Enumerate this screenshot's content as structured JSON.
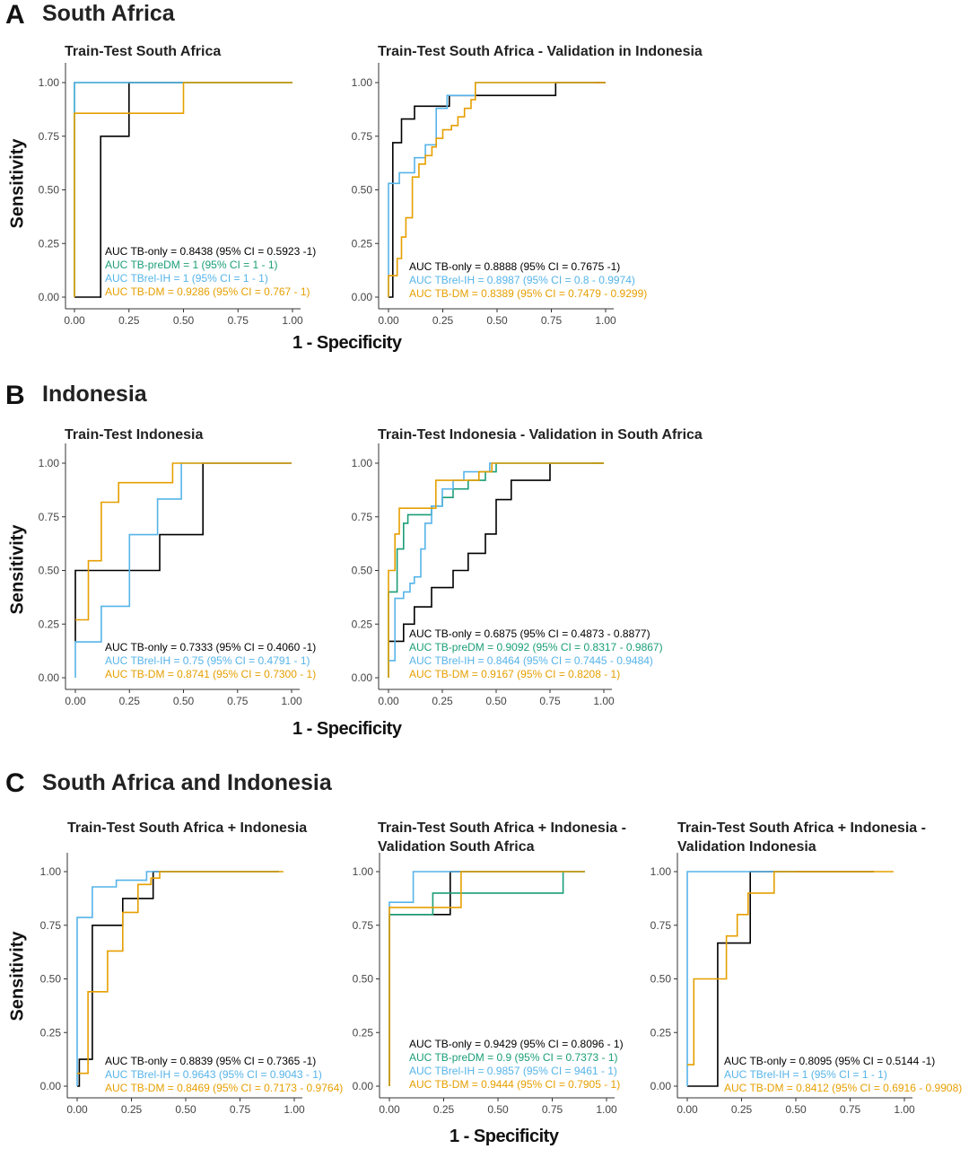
{
  "colors": {
    "TB-only": "#000000",
    "TB-preDM": "#1b9e77",
    "TBrel-IH": "#56b4e9",
    "TB-DM": "#e69f00"
  },
  "sections": [
    {
      "letter": "A",
      "title": "South Africa",
      "ylabel": "Sensitivity",
      "xlabel": "1 - Specificity"
    },
    {
      "letter": "B",
      "title": "Indonesia",
      "ylabel": "Sensitivity",
      "xlabel": "1 - Specificity"
    },
    {
      "letter": "C",
      "title": "South Africa and Indonesia",
      "ylabel": "Sensitivity",
      "xlabel": "1 - Specificity"
    }
  ],
  "panel_titles": [
    [
      "Train-Test South Africa"
    ],
    [
      "Train-Test South Africa - Validation in Indonesia"
    ],
    [
      "Train-Test Indonesia"
    ],
    [
      "Train-Test Indonesia - Validation in South Africa"
    ],
    [
      "Train-Test South Africa + Indonesia"
    ],
    [
      "Train-Test South Africa + Indonesia -",
      "Validation South Africa"
    ],
    [
      "Train-Test South Africa + Indonesia -",
      "Validation Indonesia"
    ]
  ],
  "chart_data": [
    {
      "type": "line",
      "title": "Train-Test South Africa",
      "xlabel": "1 - Specificity",
      "ylabel": "Sensitivity",
      "xlim": [
        0,
        1
      ],
      "ylim": [
        0,
        1
      ],
      "ticks": [
        "0.00",
        "0.25",
        "0.50",
        "0.75",
        "1.00"
      ],
      "series": [
        {
          "name": "TB-only",
          "x": [
            0,
            0,
            0.12,
            0.12,
            0.25,
            0.25,
            0.5,
            1.0
          ],
          "y": [
            0,
            0,
            0,
            0.75,
            0.75,
            1.0,
            1.0,
            1.0
          ]
        },
        {
          "name": "TB-preDM",
          "x": [
            0,
            0,
            1.0
          ],
          "y": [
            0,
            1.0,
            1.0
          ]
        },
        {
          "name": "TBrel-IH",
          "x": [
            0,
            0,
            1.0
          ],
          "y": [
            0,
            1.0,
            1.0
          ]
        },
        {
          "name": "TB-DM",
          "x": [
            0,
            0,
            0.5,
            0.5,
            1.0
          ],
          "y": [
            0,
            0.857,
            0.857,
            1.0,
            1.0
          ]
        }
      ],
      "legend": [
        {
          "series": "TB-only",
          "text": "AUC TB-only = 0.8438 (95% CI = 0.5923 -1)"
        },
        {
          "series": "TB-preDM",
          "text": "AUC TB-preDM = 1 (95% CI = 1 - 1)"
        },
        {
          "series": "TBrel-IH",
          "text": "AUC TBrel-IH = 1 (95% CI = 1 - 1)"
        },
        {
          "series": "TB-DM",
          "text": "AUC TB-DM = 0.9286 (95% CI = 0.767 - 1)"
        }
      ]
    },
    {
      "type": "line",
      "title": "Train-Test South Africa - Validation in Indonesia",
      "xlabel": "1 - Specificity",
      "ylabel": "Sensitivity",
      "xlim": [
        0,
        1
      ],
      "ylim": [
        0,
        1
      ],
      "ticks": [
        "0.00",
        "0.25",
        "0.50",
        "0.75",
        "1.00"
      ],
      "series": [
        {
          "name": "TB-only",
          "x": [
            0,
            0.02,
            0.02,
            0.06,
            0.06,
            0.12,
            0.12,
            0.17,
            0.17,
            0.28,
            0.28,
            0.77,
            0.77,
            1.0
          ],
          "y": [
            0,
            0,
            0.72,
            0.72,
            0.83,
            0.83,
            0.89,
            0.89,
            0.89,
            0.89,
            0.94,
            0.94,
            1.0,
            1.0
          ]
        },
        {
          "name": "TBrel-IH",
          "x": [
            0,
            0,
            0.05,
            0.05,
            0.12,
            0.12,
            0.17,
            0.17,
            0.22,
            0.22,
            0.27,
            0.27,
            0.4,
            0.4,
            0.95
          ],
          "y": [
            0,
            0.53,
            0.53,
            0.58,
            0.58,
            0.65,
            0.65,
            0.71,
            0.71,
            0.88,
            0.88,
            0.94,
            0.94,
            1.0,
            1.0
          ]
        },
        {
          "name": "TB-DM",
          "x": [
            0,
            0,
            0.04,
            0.04,
            0.06,
            0.06,
            0.08,
            0.08,
            0.11,
            0.11,
            0.14,
            0.14,
            0.17,
            0.17,
            0.2,
            0.2,
            0.22,
            0.22,
            0.25,
            0.25,
            0.29,
            0.29,
            0.32,
            0.32,
            0.35,
            0.35,
            0.38,
            0.38,
            0.4,
            0.4,
            1.0
          ],
          "y": [
            0,
            0.1,
            0.1,
            0.18,
            0.18,
            0.28,
            0.28,
            0.37,
            0.37,
            0.56,
            0.56,
            0.62,
            0.62,
            0.66,
            0.66,
            0.7,
            0.7,
            0.74,
            0.74,
            0.78,
            0.78,
            0.8,
            0.8,
            0.84,
            0.84,
            0.88,
            0.88,
            0.92,
            0.92,
            1.0,
            1.0
          ]
        }
      ],
      "legend": [
        {
          "series": "TB-only",
          "text": "AUC TB-only = 0.8888 (95% CI = 0.7675 -1)"
        },
        {
          "series": "TBrel-IH",
          "text": "AUC TBrel-IH = 0.8987 (95% CI = 0.8 - 0.9974)"
        },
        {
          "series": "TB-DM",
          "text": "AUC TB-DM = 0.8389 (95% CI = 0.7479 - 0.9299)"
        }
      ]
    },
    {
      "type": "line",
      "title": "Train-Test Indonesia",
      "xlabel": "1 - Specificity",
      "ylabel": "Sensitivity",
      "xlim": [
        0,
        1
      ],
      "ylim": [
        0,
        1
      ],
      "ticks": [
        "0.00",
        "0.25",
        "0.50",
        "0.75",
        "1.00"
      ],
      "series": [
        {
          "name": "TB-only",
          "x": [
            0,
            0,
            0.39,
            0.39,
            0.59,
            0.59,
            1.0
          ],
          "y": [
            0.17,
            0.5,
            0.5,
            0.667,
            0.667,
            1.0,
            1.0
          ]
        },
        {
          "name": "TBrel-IH",
          "x": [
            0,
            0,
            0.12,
            0.12,
            0.25,
            0.25,
            0.38,
            0.38,
            0.49,
            0.49,
            0.75,
            1.0
          ],
          "y": [
            0,
            0.167,
            0.167,
            0.333,
            0.333,
            0.667,
            0.667,
            0.833,
            0.833,
            1.0,
            1.0,
            1.0
          ]
        },
        {
          "name": "TB-DM",
          "x": [
            0,
            0,
            0.06,
            0.06,
            0.12,
            0.12,
            0.2,
            0.2,
            0.45,
            0.45,
            1.0
          ],
          "y": [
            0.27,
            0.27,
            0.27,
            0.545,
            0.545,
            0.818,
            0.818,
            0.909,
            0.909,
            1.0,
            1.0
          ]
        }
      ],
      "legend": [
        {
          "series": "TB-only",
          "text": "AUC TB-only = 0.7333 (95% CI = 0.4060 -1)"
        },
        {
          "series": "TBrel-IH",
          "text": "AUC TBrel-IH = 0.75 (95% CI = 0.4791 - 1)"
        },
        {
          "series": "TB-DM",
          "text": "AUC TB-DM = 0.8741 (95% CI = 0.7300 - 1)"
        }
      ]
    },
    {
      "type": "line",
      "title": "Train-Test Indonesia - Validation in South Africa",
      "xlabel": "1 - Specificity",
      "ylabel": "Sensitivity",
      "xlim": [
        0,
        1
      ],
      "ylim": [
        0,
        1
      ],
      "ticks": [
        "0.00",
        "0.25",
        "0.50",
        "0.75",
        "1.00"
      ],
      "series": [
        {
          "name": "TB-only",
          "x": [
            0,
            0,
            0.07,
            0.07,
            0.12,
            0.12,
            0.2,
            0.2,
            0.3,
            0.3,
            0.37,
            0.37,
            0.45,
            0.45,
            0.5,
            0.5,
            0.57,
            0.57,
            0.62,
            0.62,
            0.72,
            0.72,
            0.75,
            0.75,
            1.0
          ],
          "y": [
            0.17,
            0.17,
            0.17,
            0.25,
            0.25,
            0.33,
            0.33,
            0.42,
            0.42,
            0.5,
            0.5,
            0.58,
            0.58,
            0.67,
            0.67,
            0.83,
            0.83,
            0.92,
            0.92,
            0.92,
            0.92,
            0.92,
            0.92,
            1.0,
            1.0
          ]
        },
        {
          "name": "TB-preDM",
          "x": [
            0,
            0,
            0.04,
            0.04,
            0.07,
            0.07,
            0.09,
            0.09,
            0.2,
            0.2,
            0.25,
            0.25,
            0.3,
            0.3,
            0.37,
            0.37,
            0.45,
            0.45,
            0.5,
            0.5,
            1.0
          ],
          "y": [
            0,
            0.4,
            0.4,
            0.6,
            0.6,
            0.72,
            0.72,
            0.76,
            0.76,
            0.8,
            0.8,
            0.84,
            0.84,
            0.88,
            0.88,
            0.92,
            0.92,
            0.96,
            0.96,
            1.0,
            1.0
          ]
        },
        {
          "name": "TBrel-IH",
          "x": [
            0,
            0,
            0.03,
            0.03,
            0.07,
            0.07,
            0.1,
            0.1,
            0.12,
            0.12,
            0.15,
            0.15,
            0.17,
            0.17,
            0.2,
            0.2,
            0.25,
            0.25,
            0.3,
            0.3,
            0.35,
            0.35,
            0.45,
            0.45,
            0.47,
            0.47,
            0.95
          ],
          "y": [
            0,
            0.08,
            0.08,
            0.37,
            0.37,
            0.4,
            0.4,
            0.44,
            0.44,
            0.47,
            0.47,
            0.6,
            0.6,
            0.72,
            0.72,
            0.8,
            0.8,
            0.88,
            0.88,
            0.92,
            0.92,
            0.96,
            0.96,
            0.96,
            0.96,
            1.0,
            1.0
          ]
        },
        {
          "name": "TB-DM",
          "x": [
            0,
            0,
            0.03,
            0.03,
            0.05,
            0.05,
            0.08,
            0.08,
            0.22,
            0.22,
            0.32,
            0.32,
            0.42,
            0.42,
            0.48,
            0.48,
            1.0
          ],
          "y": [
            0,
            0.5,
            0.5,
            0.67,
            0.67,
            0.79,
            0.79,
            0.79,
            0.79,
            0.92,
            0.92,
            0.92,
            0.92,
            0.96,
            0.96,
            1.0,
            1.0
          ]
        }
      ],
      "legend": [
        {
          "series": "TB-only",
          "text": "AUC TB-only = 0.6875 (95% CI = 0.4873 - 0.8877)"
        },
        {
          "series": "TB-preDM",
          "text": "AUC TB-preDM = 0.9092 (95% CI = 0.8317 - 0.9867)"
        },
        {
          "series": "TBrel-IH",
          "text": "AUC TBrel-IH = 0.8464 (95% CI = 0.7445 - 0.9484)"
        },
        {
          "series": "TB-DM",
          "text": "AUC TB-DM = 0.9167 (95% CI = 0.8208 - 1)"
        }
      ]
    },
    {
      "type": "line",
      "title": "Train-Test South Africa + Indonesia",
      "xlabel": "1 - Specificity",
      "ylabel": "Sensitivity",
      "xlim": [
        0,
        1
      ],
      "ylim": [
        0,
        1
      ],
      "ticks": [
        "0.00",
        "0.25",
        "0.50",
        "0.75",
        "1.00"
      ],
      "series": [
        {
          "name": "TB-only",
          "x": [
            0,
            0.01,
            0.01,
            0.07,
            0.07,
            0.21,
            0.21,
            0.35,
            0.35,
            0.93,
            0.93
          ],
          "y": [
            0,
            0,
            0.125,
            0.125,
            0.75,
            0.75,
            0.875,
            0.875,
            1.0,
            1.0,
            1.0
          ]
        },
        {
          "name": "TBrel-IH",
          "x": [
            0,
            0,
            0.07,
            0.07,
            0.18,
            0.18,
            0.32,
            0.32,
            0.93
          ],
          "y": [
            0,
            0.786,
            0.786,
            0.929,
            0.929,
            0.96,
            0.96,
            1.0,
            1.0
          ]
        },
        {
          "name": "TB-DM",
          "x": [
            0,
            0,
            0.05,
            0.05,
            0.14,
            0.14,
            0.21,
            0.21,
            0.28,
            0.28,
            0.34,
            0.34,
            0.38,
            0.38,
            0.95
          ],
          "y": [
            0.06,
            0.06,
            0.06,
            0.44,
            0.44,
            0.63,
            0.63,
            0.81,
            0.81,
            0.94,
            0.94,
            0.97,
            0.97,
            1.0,
            1.0
          ]
        }
      ],
      "legend": [
        {
          "series": "TB-only",
          "text": "AUC TB-only = 0.8839 (95% CI = 0.7365 -1)"
        },
        {
          "series": "TBrel-IH",
          "text": "AUC TBrel-IH = 0.9643 (95% CI = 0.9043 - 1)"
        },
        {
          "series": "TB-DM",
          "text": "AUC TB-DM = 0.8469 (95% CI = 0.7173 - 0.9764)"
        }
      ]
    },
    {
      "type": "line",
      "title": "Train-Test South Africa + Indonesia - Validation South Africa",
      "xlabel": "1 - Specificity",
      "ylabel": "Sensitivity",
      "xlim": [
        0,
        1
      ],
      "ylim": [
        0,
        1
      ],
      "ticks": [
        "0.00",
        "0.25",
        "0.50",
        "0.75",
        "1.00"
      ],
      "series": [
        {
          "name": "TB-only",
          "x": [
            0,
            0,
            0.22,
            0.22,
            0.28,
            0.28,
            0.9
          ],
          "y": [
            0,
            0.8,
            0.8,
            0.8,
            0.8,
            1.0,
            1.0
          ]
        },
        {
          "name": "TB-preDM",
          "x": [
            0,
            0,
            0.2,
            0.2,
            0.8,
            0.8,
            0.9
          ],
          "y": [
            0,
            0.8,
            0.8,
            0.9,
            0.9,
            1.0,
            1.0
          ]
        },
        {
          "name": "TBrel-IH",
          "x": [
            0,
            0,
            0.11,
            0.11,
            0.9
          ],
          "y": [
            0,
            0.857,
            0.857,
            1.0,
            1.0
          ]
        },
        {
          "name": "TB-DM",
          "x": [
            0,
            0,
            0.33,
            0.33,
            0.9
          ],
          "y": [
            0,
            0.833,
            0.833,
            1.0,
            1.0
          ]
        }
      ],
      "legend": [
        {
          "series": "TB-only",
          "text": "AUC TB-only = 0.9429 (95% CI = 0.8096 - 1)"
        },
        {
          "series": "TB-preDM",
          "text": "AUC TB-preDM = 0.9 (95% CI = 0.7373 - 1)"
        },
        {
          "series": "TBrel-IH",
          "text": "AUC TBrel-IH = 0.9857 (95% CI = 9461 - 1)"
        },
        {
          "series": "TB-DM",
          "text": "AUC TB-DM = 0.9444 (95% CI = 0.7905 - 1)"
        }
      ]
    },
    {
      "type": "line",
      "title": "Train-Test South Africa + Indonesia - Validation Indonesia",
      "xlabel": "1 - Specificity",
      "ylabel": "Sensitivity",
      "xlim": [
        0,
        1
      ],
      "ylim": [
        0,
        1
      ],
      "ticks": [
        "0.00",
        "0.25",
        "0.50",
        "0.75",
        "1.00"
      ],
      "series": [
        {
          "name": "TB-only",
          "x": [
            0,
            0.14,
            0.14,
            0.29,
            0.29,
            0.86
          ],
          "y": [
            0,
            0,
            0.667,
            0.667,
            1.0,
            1.0
          ]
        },
        {
          "name": "TBrel-IH",
          "x": [
            0,
            0,
            0.5
          ],
          "y": [
            0,
            1.0,
            1.0
          ]
        },
        {
          "name": "TB-DM",
          "x": [
            0,
            0,
            0.03,
            0.03,
            0.18,
            0.18,
            0.23,
            0.23,
            0.28,
            0.28,
            0.36,
            0.36,
            0.4,
            0.4,
            0.95
          ],
          "y": [
            0.1,
            0.1,
            0.1,
            0.5,
            0.5,
            0.7,
            0.7,
            0.8,
            0.8,
            0.9,
            0.9,
            0.9,
            0.9,
            1.0,
            1.0
          ]
        }
      ],
      "legend": [
        {
          "series": "TB-only",
          "text": "AUC TB-only = 0.8095 (95% CI = 0.5144 -1)"
        },
        {
          "series": "TBrel-IH",
          "text": "AUC TBrel-IH = 1 (95% CI = 1 - 1)"
        },
        {
          "series": "TB-DM",
          "text": "AUC TB-DM = 0.8412 (95% CI = 0.6916 - 0.9908)"
        }
      ]
    }
  ]
}
